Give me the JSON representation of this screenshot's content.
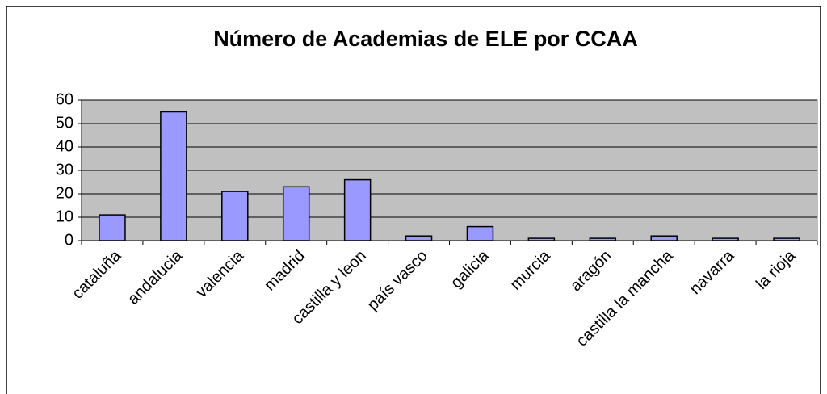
{
  "chart_data": {
    "type": "bar",
    "title": "Número de Academias de ELE por CCAA",
    "categories": [
      "cataluña",
      "andalucia",
      "valencia",
      "madrid",
      "castilla y leon",
      "país vasco",
      "galicia",
      "murcia",
      "aragón",
      "castilla la mancha",
      "navarra",
      "la rioja"
    ],
    "values": [
      11,
      55,
      21,
      23,
      26,
      2,
      6,
      1,
      1,
      2,
      1,
      1
    ],
    "color": "#9999ff",
    "ylim": [
      0,
      60
    ],
    "yticks": [
      0,
      10,
      20,
      30,
      40,
      50,
      60
    ],
    "grid": true
  }
}
